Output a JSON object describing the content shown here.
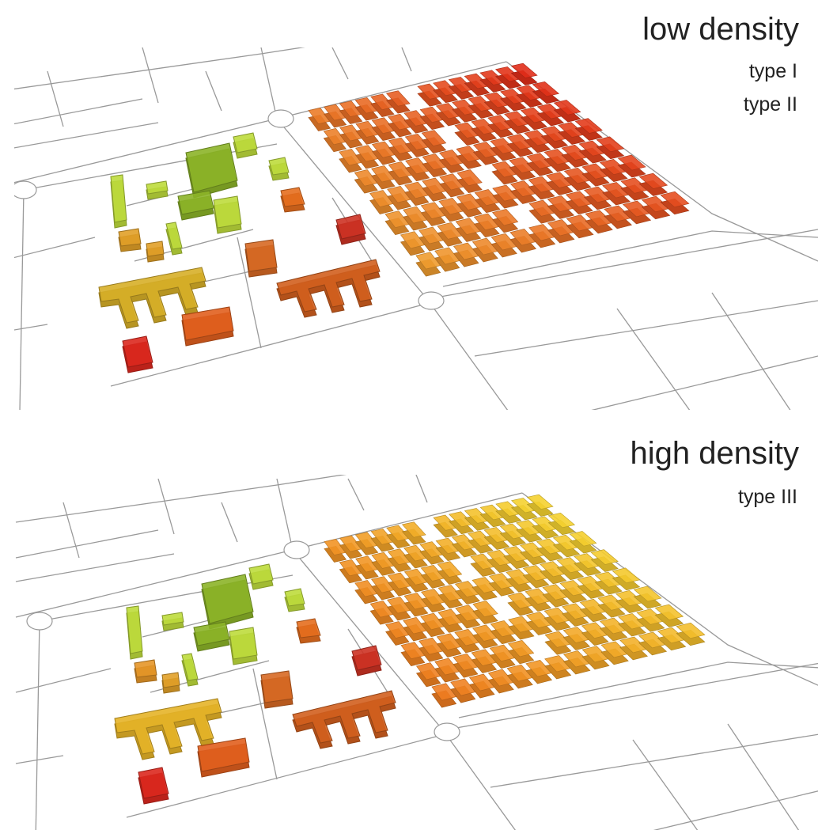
{
  "panels": [
    {
      "title": "low density",
      "types": [
        "type I",
        "type II"
      ]
    },
    {
      "title": "high density",
      "types": [
        "type III"
      ]
    }
  ]
}
